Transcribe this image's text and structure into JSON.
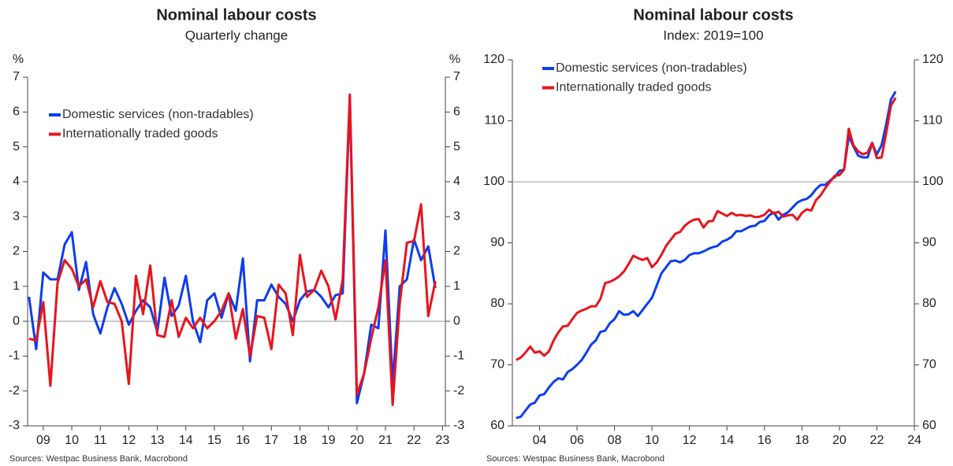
{
  "chart_data": [
    {
      "type": "line",
      "title": "Nominal labour costs",
      "subtitle": "Quarterly change",
      "y_unit": "%",
      "x": [
        2009,
        2009.25,
        2009.5,
        2009.75,
        2010,
        2010.25,
        2010.5,
        2010.75,
        2011,
        2011.25,
        2011.5,
        2011.75,
        2012,
        2012.25,
        2012.5,
        2012.75,
        2013,
        2013.25,
        2013.5,
        2013.75,
        2014,
        2014.25,
        2014.5,
        2014.75,
        2015,
        2015.25,
        2015.5,
        2015.75,
        2016,
        2016.25,
        2016.5,
        2016.75,
        2017,
        2017.25,
        2017.5,
        2017.75,
        2018,
        2018.25,
        2018.5,
        2018.75,
        2019,
        2019.25,
        2019.5,
        2019.75,
        2020,
        2020.25,
        2020.5,
        2020.75,
        2021,
        2021.25,
        2021.5,
        2021.75,
        2022,
        2022.25,
        2022.5,
        2022.75,
        2023,
        2023.25
      ],
      "series": [
        {
          "name": "Domestic services (non-tradables)",
          "color": "#0d3cf0",
          "values": [
            0.7,
            -0.8,
            1.4,
            1.2,
            1.2,
            2.2,
            2.55,
            0.9,
            1.7,
            0.2,
            -0.35,
            0.4,
            0.95,
            0.5,
            -0.1,
            0.3,
            0.6,
            0.4,
            -0.3,
            1.25,
            0.15,
            0.45,
            1.3,
            0.0,
            -0.6,
            0.6,
            0.8,
            0.1,
            0.8,
            0.3,
            1.8,
            -1.15,
            0.6,
            0.6,
            1.05,
            0.7,
            0.5,
            0.0,
            0.6,
            0.85,
            0.9,
            0.7,
            0.4,
            0.75,
            0.8,
            6.4,
            -2.35,
            -1.5,
            -0.1,
            -0.2,
            2.6,
            -1.8,
            1.0,
            1.2,
            2.35,
            1.75,
            2.15,
            0.95
          ]
        },
        {
          "name": "Internationally traded goods",
          "color": "#e8141c",
          "values": [
            -0.5,
            -0.55,
            0.55,
            -1.85,
            1.1,
            1.75,
            1.5,
            1.0,
            1.2,
            0.4,
            1.15,
            0.55,
            0.5,
            0.0,
            -1.8,
            1.3,
            0.2,
            1.6,
            -0.4,
            -0.45,
            0.6,
            -0.45,
            0.1,
            -0.2,
            0.1,
            -0.2,
            0.0,
            0.3,
            0.8,
            -0.5,
            0.35,
            -1.0,
            0.15,
            0.1,
            -0.8,
            1.05,
            0.8,
            -0.4,
            1.9,
            0.7,
            0.9,
            1.45,
            1.0,
            0.05,
            1.2,
            6.5,
            -2.1,
            -1.5,
            -0.5,
            0.4,
            1.75,
            -2.4,
            0.5,
            2.25,
            2.3,
            3.35,
            0.15,
            1.15
          ]
        }
      ],
      "xlim": [
        2008.95,
        2023.6
      ],
      "xticks": [
        {
          "value": 2009.5,
          "label": "09"
        },
        {
          "value": 2010.5,
          "label": "10"
        },
        {
          "value": 2011.5,
          "label": "11"
        },
        {
          "value": 2012.5,
          "label": "12"
        },
        {
          "value": 2013.5,
          "label": "13"
        },
        {
          "value": 2014.5,
          "label": "14"
        },
        {
          "value": 2015.5,
          "label": "15"
        },
        {
          "value": 2016.5,
          "label": "16"
        },
        {
          "value": 2017.5,
          "label": "17"
        },
        {
          "value": 2018.5,
          "label": "18"
        },
        {
          "value": 2019.5,
          "label": "19"
        },
        {
          "value": 2020.5,
          "label": "20"
        },
        {
          "value": 2021.5,
          "label": "21"
        },
        {
          "value": 2022.5,
          "label": "22"
        },
        {
          "value": 2023.5,
          "label": "23"
        }
      ],
      "ylim": [
        -3,
        7
      ],
      "yticks": [
        -3,
        -2,
        -1,
        0,
        1,
        2,
        3,
        4,
        5,
        6,
        7
      ],
      "reference_line": 0,
      "legend": "upper left",
      "source": "Sources: Westpac Business Bank, Macrobond"
    },
    {
      "type": "line",
      "title": "Nominal labour costs",
      "subtitle": "Index: 2019=100",
      "x": [
        2002.75,
        2003,
        2003.25,
        2003.5,
        2003.75,
        2004,
        2004.25,
        2004.5,
        2004.75,
        2005,
        2005.25,
        2005.5,
        2005.75,
        2006,
        2006.25,
        2006.5,
        2006.75,
        2007,
        2007.25,
        2007.5,
        2007.75,
        2008,
        2008.25,
        2008.5,
        2008.75,
        2009,
        2009.25,
        2009.5,
        2009.75,
        2010,
        2010.25,
        2010.5,
        2010.75,
        2011,
        2011.25,
        2011.5,
        2011.75,
        2012,
        2012.25,
        2012.5,
        2012.75,
        2013,
        2013.25,
        2013.5,
        2013.75,
        2014,
        2014.25,
        2014.5,
        2014.75,
        2015,
        2015.25,
        2015.5,
        2015.75,
        2016,
        2016.25,
        2016.5,
        2016.75,
        2017,
        2017.25,
        2017.5,
        2017.75,
        2018,
        2018.25,
        2018.5,
        2018.75,
        2019,
        2019.25,
        2019.5,
        2019.75,
        2020,
        2020.25,
        2020.5,
        2020.75,
        2021,
        2021.25,
        2021.5,
        2021.75,
        2022,
        2022.25,
        2022.5,
        2022.75,
        2023
      ],
      "series": [
        {
          "name": "Domestic services (non-tradables)",
          "color": "#0d3cf0",
          "values": [
            61.3,
            61.5,
            62.5,
            63.5,
            63.8,
            65,
            65.2,
            66.3,
            67.2,
            67.8,
            67.6,
            68.8,
            69.3,
            70,
            70.8,
            72,
            73.3,
            74,
            75.4,
            75.6,
            76.8,
            77.5,
            78.8,
            78.2,
            78.3,
            78.8,
            78,
            79,
            80,
            81,
            83,
            85,
            86,
            87,
            87.1,
            86.8,
            87.2,
            88,
            88.3,
            88.3,
            88.6,
            89,
            89.3,
            89.5,
            90.2,
            90.5,
            91,
            91.9,
            91.9,
            92.3,
            92.7,
            92.8,
            93.4,
            93.6,
            94.5,
            95,
            93.8,
            94.6,
            95,
            95.8,
            96.6,
            97,
            97.2,
            97.8,
            98.8,
            99.5,
            99.5,
            100.2,
            100.8,
            101.8,
            102,
            107.5,
            105.8,
            104.3,
            104,
            104,
            106.3,
            104.5,
            106,
            109.5,
            113.5,
            114.8
          ]
        },
        {
          "name": "Internationally traded goods",
          "color": "#e8141c",
          "values": [
            70.8,
            71.2,
            72,
            73,
            72,
            72.2,
            71.5,
            72.2,
            74,
            75.3,
            76.3,
            76.4,
            77.5,
            78.5,
            78.9,
            79.2,
            79.6,
            79.6,
            80.8,
            83.4,
            83.6,
            84,
            84.5,
            85.3,
            86.5,
            87.9,
            87.5,
            87.2,
            87.5,
            86,
            86.8,
            88,
            89.5,
            90.5,
            91.5,
            91.8,
            92.8,
            93.4,
            93.8,
            93.9,
            92.5,
            93.5,
            93.6,
            95.2,
            94.8,
            94.4,
            94.9,
            94.5,
            94.6,
            94.4,
            94.5,
            94.2,
            94.3,
            94.6,
            95.4,
            94.8,
            95.1,
            94.3,
            94.5,
            94.6,
            93.8,
            94.9,
            95.5,
            95.3,
            97,
            97.8,
            99,
            100,
            101,
            101.1,
            102,
            108.7,
            106,
            105,
            104.5,
            104.8,
            106.4,
            103.9,
            104,
            108,
            112.5,
            113.8
          ]
        }
      ],
      "xlim": [
        2002.55,
        2024
      ],
      "xticks": [
        {
          "value": 2004,
          "label": "04"
        },
        {
          "value": 2006,
          "label": "06"
        },
        {
          "value": 2008,
          "label": "08"
        },
        {
          "value": 2010,
          "label": "10"
        },
        {
          "value": 2012,
          "label": "12"
        },
        {
          "value": 2014,
          "label": "14"
        },
        {
          "value": 2016,
          "label": "16"
        },
        {
          "value": 2018,
          "label": "18"
        },
        {
          "value": 2020,
          "label": "20"
        },
        {
          "value": 2022,
          "label": "22"
        },
        {
          "value": 2024,
          "label": "24"
        }
      ],
      "ylim": [
        60,
        120
      ],
      "yticks": [
        60,
        70,
        80,
        90,
        100,
        110,
        120
      ],
      "reference_line": 100,
      "legend": "upper left",
      "source": "Sources: Westpac Business Bank, Macrobond"
    }
  ]
}
